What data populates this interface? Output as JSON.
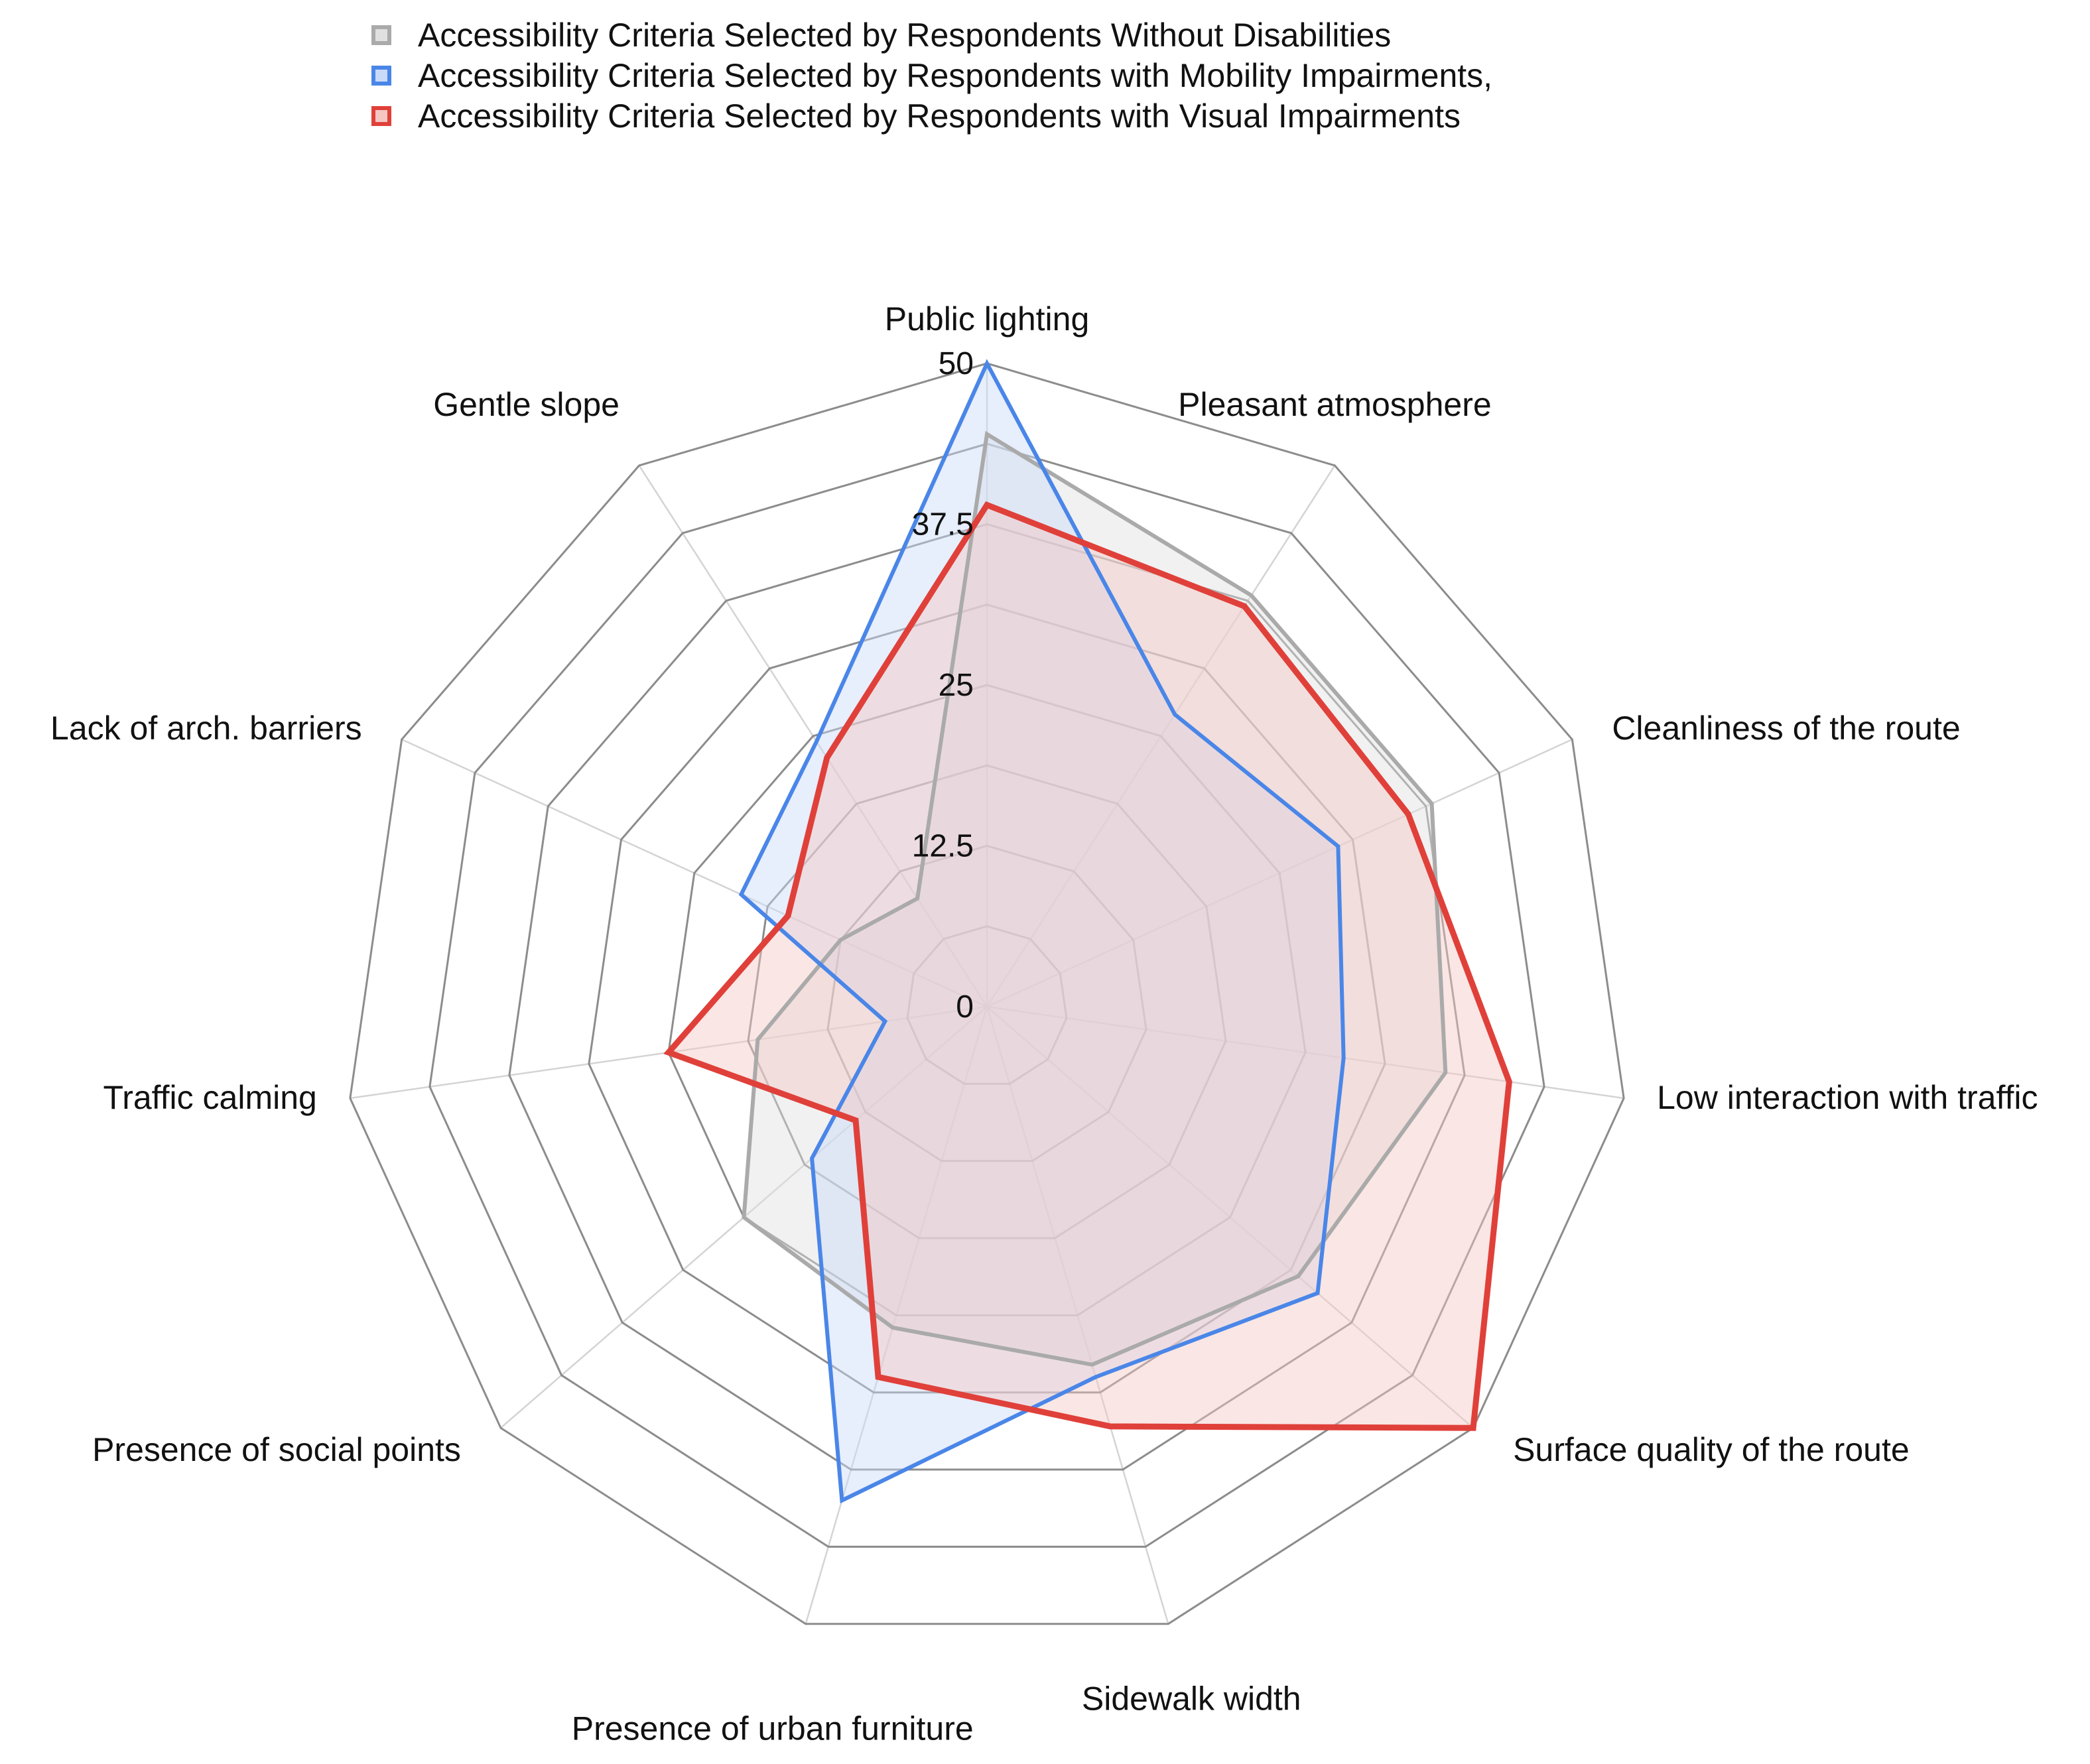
{
  "chart_data": {
    "type": "radar",
    "title": "",
    "categories": [
      "Public lighting",
      "Pleasant atmosphere",
      "Cleanliness of the route",
      "Low interaction with traffic",
      "Surface quality of the route",
      "Sidewalk width",
      "Presence of urban furniture",
      "Presence of social points",
      "Traffic calming",
      "Lack of arch. barriers",
      "Gentle slope"
    ],
    "ticks": [
      0,
      12.5,
      25,
      37.5,
      50
    ],
    "tick_labels": [
      "0",
      "12.5",
      "25",
      "37.5",
      "50"
    ],
    "rlim": [
      0,
      50
    ],
    "grid": true,
    "legend_position": "top",
    "series": [
      {
        "name": "Accessibility Criteria Selected by Respondents Without Disabilities",
        "color": "#aaaaaa",
        "fill": "#e0e0e0",
        "values": [
          44.5,
          38,
          38,
          36,
          32,
          29,
          26,
          25,
          18,
          12.5,
          10
        ]
      },
      {
        "name": "Accessibility Criteria Selected by Respondents with Mobility Impairments,",
        "color": "#4a86e8",
        "fill": "#c9daf8",
        "values": [
          50,
          27,
          30,
          28,
          34,
          30,
          40,
          18,
          8,
          21,
          24.5
        ]
      },
      {
        "name": "Accessibility Criteria Selected by Respondents with Visual Impairments",
        "color": "#e0403a",
        "fill": "#f4c7c3",
        "values": [
          39,
          37,
          36,
          41,
          50,
          34,
          30,
          13.5,
          25,
          17,
          23
        ]
      }
    ]
  }
}
